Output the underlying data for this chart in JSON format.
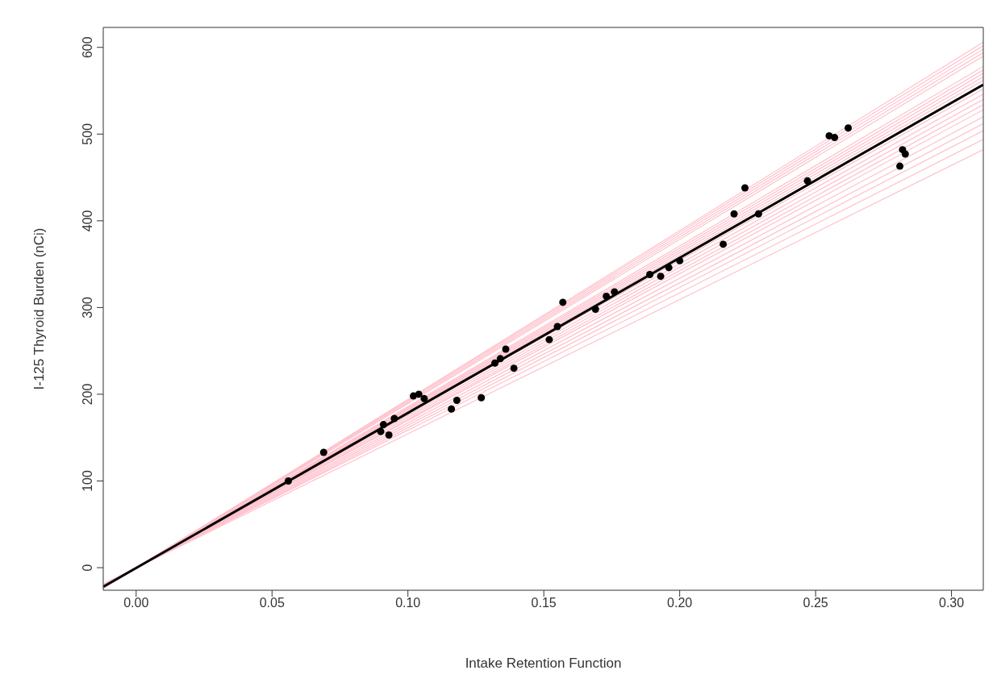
{
  "chart_data": {
    "type": "line",
    "xlabel": "Intake Retention Function",
    "ylabel": "I-125 Thyroid Burden (nCi)",
    "xlim": [
      -0.0121,
      0.3117
    ],
    "ylim": [
      -26,
      623
    ],
    "xticks": [
      {
        "value": 0,
        "label": "0.00"
      },
      {
        "value": 0.05,
        "label": "0.05"
      },
      {
        "value": 0.1,
        "label": "0.10"
      },
      {
        "value": 0.15,
        "label": "0.15"
      },
      {
        "value": 0.2,
        "label": "0.20"
      },
      {
        "value": 0.25,
        "label": "0.25"
      },
      {
        "value": 0.3,
        "label": "0.30"
      }
    ],
    "yticks": [
      0,
      100,
      200,
      300,
      400,
      500,
      600
    ],
    "grid": false,
    "marker": "none",
    "line_style": "solid",
    "series": [
      {
        "color": "#ffc0cb",
        "x": [
          -0.0121,
          0.3117
        ],
        "values": [
          -24,
          606
        ]
      },
      {
        "color": "#ffc0cb",
        "x": [
          -0.0121,
          0.3117
        ],
        "values": [
          -23,
          602
        ]
      },
      {
        "color": "#ffc0cb",
        "x": [
          -0.0121,
          0.3117
        ],
        "values": [
          -23,
          598
        ]
      },
      {
        "color": "#ffc0cb",
        "x": [
          -0.0121,
          0.3117
        ],
        "values": [
          -23,
          594
        ]
      },
      {
        "color": "#ffc0cb",
        "x": [
          -0.0121,
          0.3117
        ],
        "values": [
          -23,
          590
        ]
      },
      {
        "color": "#ffc0cb",
        "x": [
          -0.0121,
          0.3117
        ],
        "values": [
          -22,
          578
        ]
      },
      {
        "color": "#ffc0cb",
        "x": [
          -0.0121,
          0.3117
        ],
        "values": [
          -22,
          574
        ]
      },
      {
        "color": "#ffc0cb",
        "x": [
          -0.0121,
          0.3117
        ],
        "values": [
          -22,
          570
        ]
      },
      {
        "color": "#ffc0cb",
        "x": [
          -0.0121,
          0.3117
        ],
        "values": [
          -22,
          566
        ]
      },
      {
        "color": "#ffc0cb",
        "x": [
          -0.0121,
          0.3117
        ],
        "values": [
          -22,
          562
        ]
      },
      {
        "color": "#ffc0cb",
        "x": [
          -0.0121,
          0.3117
        ],
        "values": [
          -22,
          558
        ]
      },
      {
        "color": "#ffc0cb",
        "x": [
          -0.0121,
          0.3117
        ],
        "values": [
          -21,
          552
        ]
      },
      {
        "color": "#ffc0cb",
        "x": [
          -0.0121,
          0.3117
        ],
        "values": [
          -21,
          546
        ]
      },
      {
        "color": "#ffc0cb",
        "x": [
          -0.0121,
          0.3117
        ],
        "values": [
          -21,
          540
        ]
      },
      {
        "color": "#ffc0cb",
        "x": [
          -0.0121,
          0.3117
        ],
        "values": [
          -21,
          534
        ]
      },
      {
        "color": "#ffc0cb",
        "x": [
          -0.0121,
          0.3117
        ],
        "values": [
          -20,
          528
        ]
      },
      {
        "color": "#ffc0cb",
        "x": [
          -0.0121,
          0.3117
        ],
        "values": [
          -20,
          520
        ]
      },
      {
        "color": "#ffc0cb",
        "x": [
          -0.0121,
          0.3117
        ],
        "values": [
          -20,
          512
        ]
      },
      {
        "color": "#ffc0cb",
        "x": [
          -0.0121,
          0.3117
        ],
        "values": [
          -20,
          504
        ]
      },
      {
        "color": "#ffc0cb",
        "x": [
          -0.0121,
          0.3117
        ],
        "values": [
          -19,
          494
        ]
      },
      {
        "color": "#ffc0cb",
        "x": [
          -0.0121,
          0.3117
        ],
        "values": [
          -19,
          482
        ]
      },
      {
        "color": "#000000",
        "x": [
          -0.0121,
          0.3117
        ],
        "values": [
          -22,
          557
        ]
      },
      {
        "type": "scatter",
        "marker": "circle",
        "color": "#000000",
        "x": [
          0.056,
          0.069,
          0.09,
          0.091,
          0.093,
          0.095,
          0.102,
          0.104,
          0.106,
          0.116,
          0.118,
          0.127,
          0.132,
          0.134,
          0.136,
          0.139,
          0.152,
          0.155,
          0.157,
          0.169,
          0.173,
          0.176,
          0.189,
          0.193,
          0.196,
          0.2,
          0.216,
          0.22,
          0.224,
          0.229,
          0.247,
          0.255,
          0.257,
          0.262,
          0.281,
          0.282,
          0.283
        ],
        "values": [
          100,
          133,
          157,
          165,
          153,
          172,
          198,
          200,
          195,
          183,
          193,
          196,
          236,
          241,
          252,
          230,
          263,
          278,
          306,
          298,
          313,
          318,
          338,
          336,
          346,
          354,
          373,
          408,
          438,
          408,
          446,
          498,
          496,
          507,
          463,
          482,
          477
        ]
      }
    ]
  }
}
